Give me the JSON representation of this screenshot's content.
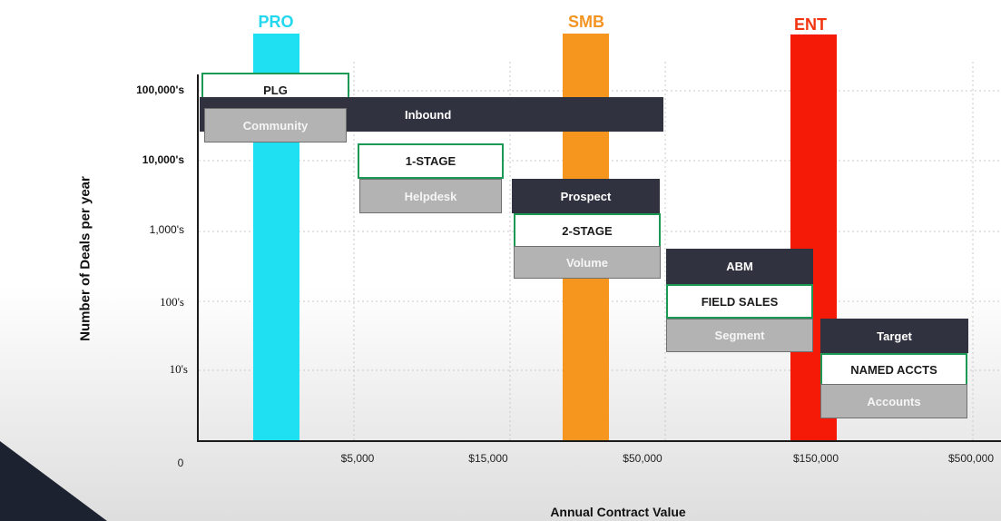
{
  "chart_data": {
    "type": "bar",
    "title": "",
    "xlabel": "Annual Contract Value",
    "ylabel": "Number of Deals per year",
    "x_origin_label": "0",
    "x_ticks": [
      "$5,000",
      "$15,000",
      "$50,000",
      "$150,000",
      "$500,000"
    ],
    "y_ticks": [
      "100,000's",
      "10,000's",
      "1,000's",
      "100's",
      "10's"
    ],
    "grid": true,
    "segments": [
      {
        "name": "PRO",
        "color": "#1ee0f2",
        "label_color": "#22d7ee"
      },
      {
        "name": "SMB",
        "color": "#f7961e",
        "label_color": "#f39423"
      },
      {
        "name": "ENT",
        "color": "#f51a08",
        "label_color": "#f2340f"
      }
    ],
    "boxes": [
      {
        "label": "PLG",
        "style": "outline"
      },
      {
        "label": "Inbound",
        "style": "dark"
      },
      {
        "label": "Community",
        "style": "light"
      },
      {
        "label": "1-STAGE",
        "style": "outline"
      },
      {
        "label": "Helpdesk",
        "style": "light"
      },
      {
        "label": "Prospect",
        "style": "dark"
      },
      {
        "label": "2-STAGE",
        "style": "outline"
      },
      {
        "label": "Volume",
        "style": "light"
      },
      {
        "label": "ABM",
        "style": "dark"
      },
      {
        "label": "FIELD SALES",
        "style": "outline"
      },
      {
        "label": "Segment",
        "style": "light"
      },
      {
        "label": "Target",
        "style": "dark"
      },
      {
        "label": "NAMED ACCTS",
        "style": "outline"
      },
      {
        "label": "Accounts",
        "style": "light"
      }
    ]
  }
}
